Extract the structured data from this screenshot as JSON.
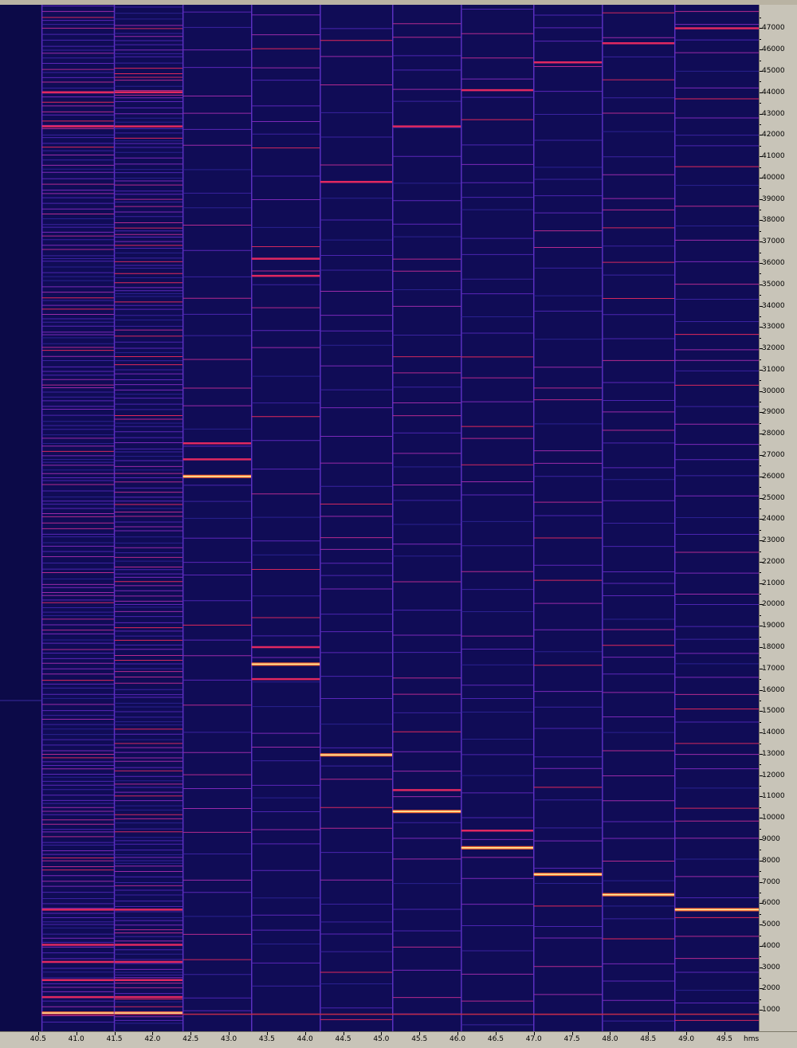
{
  "window": {
    "x_unit": "hms"
  },
  "colors": {
    "background": "#0c0a48",
    "axis_panel": "#c8c4b8",
    "intensity_low": "#3a1a9a",
    "intensity_mid": "#9a2aa8",
    "intensity_high": "#e02860",
    "intensity_peak": "#fff0a0"
  },
  "chart_data": {
    "type": "heatmap",
    "title": "",
    "xlabel": "hms",
    "ylabel": "",
    "x_ticks": [
      "40.5",
      "41.0",
      "41.5",
      "42.0",
      "42.5",
      "43.0",
      "43.5",
      "44.0",
      "44.5",
      "45.0",
      "45.5",
      "46.0",
      "46.5",
      "47.0",
      "47.5",
      "48.0",
      "48.5",
      "49.0",
      "49.5"
    ],
    "y_ticks": [
      "1000",
      "2000",
      "3000",
      "4000",
      "5000",
      "6000",
      "7000",
      "8000",
      "9000",
      "10000",
      "11000",
      "12000",
      "13000",
      "14000",
      "15000",
      "16000",
      "17000",
      "18000",
      "19000",
      "20000",
      "21000",
      "22000",
      "23000",
      "24000",
      "25000",
      "26000",
      "27000",
      "28000",
      "29000",
      "30000",
      "31000",
      "32000",
      "33000",
      "34000",
      "35000",
      "36000",
      "37000",
      "38000",
      "39000",
      "40000",
      "41000",
      "42000",
      "43000",
      "44000",
      "45000",
      "46000",
      "47000"
    ],
    "xlim": [
      40.0,
      49.95
    ],
    "ylim": [
      0,
      48100
    ],
    "grid": false,
    "colormap": "spectrogram",
    "segments": [
      {
        "start": 40.55,
        "end": 41.5,
        "fundamental": 850,
        "strong": [
          850,
          1600,
          2400,
          3250,
          4050,
          5700,
          42400,
          44000
        ]
      },
      {
        "start": 41.5,
        "end": 42.4,
        "fundamental": 850,
        "strong": [
          850,
          1600,
          2400,
          3250,
          4050,
          5700,
          42400,
          44000
        ]
      },
      {
        "start": 42.4,
        "end": 43.3,
        "fundamental": 26000,
        "strong": [
          26000,
          26800,
          27550
        ]
      },
      {
        "start": 43.3,
        "end": 44.2,
        "fundamental": 17200,
        "strong": [
          17200,
          16500,
          18000,
          35400,
          36200
        ]
      },
      {
        "start": 44.2,
        "end": 45.15,
        "fundamental": 12950,
        "strong": [
          12950,
          39800
        ]
      },
      {
        "start": 45.15,
        "end": 46.05,
        "fundamental": 10300,
        "strong": [
          10300,
          11300,
          42400
        ]
      },
      {
        "start": 46.05,
        "end": 47.0,
        "fundamental": 8600,
        "strong": [
          8600,
          9400,
          44100
        ]
      },
      {
        "start": 47.0,
        "end": 47.9,
        "fundamental": 7350,
        "strong": [
          7350,
          45400
        ]
      },
      {
        "start": 47.9,
        "end": 48.85,
        "fundamental": 6400,
        "strong": [
          6400,
          46300
        ]
      },
      {
        "start": 48.85,
        "end": 49.95,
        "fundamental": 5700,
        "strong": [
          5700,
          47000
        ]
      }
    ]
  }
}
